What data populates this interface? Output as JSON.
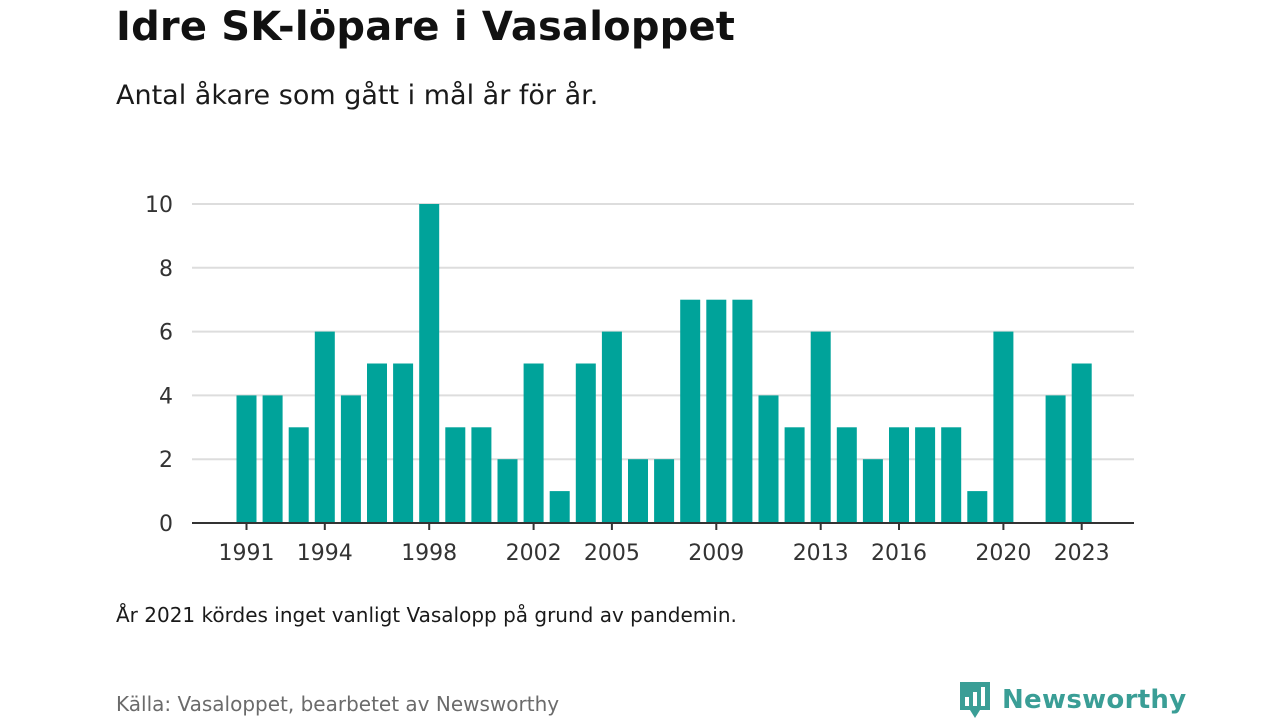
{
  "header": {
    "title": "Idre SK-löpare i Vasaloppet",
    "subtitle": "Antal åkare som gått i mål år för år."
  },
  "footer": {
    "note": "År 2021 kördes inget vanligt Vasalopp på grund av pandemin.",
    "source": "Källa: Vasaloppet, bearbetet av Newsworthy",
    "brand": "Newsworthy"
  },
  "colors": {
    "bar": "#00a39a",
    "grid": "#dddddd",
    "axis": "#333333",
    "brand": "#3a9e96"
  },
  "chart_data": {
    "type": "bar",
    "title": "Idre SK-löpare i Vasaloppet",
    "subtitle": "Antal åkare som gått i mål år för år.",
    "xlabel": "",
    "ylabel": "",
    "categories": [
      1991,
      1992,
      1993,
      1994,
      1995,
      1996,
      1997,
      1998,
      1999,
      2000,
      2001,
      2002,
      2003,
      2004,
      2005,
      2006,
      2007,
      2008,
      2009,
      2010,
      2011,
      2012,
      2013,
      2014,
      2015,
      2016,
      2017,
      2018,
      2019,
      2020,
      2021,
      2022,
      2023
    ],
    "values": [
      4,
      4,
      3,
      6,
      4,
      5,
      5,
      10,
      3,
      3,
      2,
      5,
      1,
      5,
      6,
      2,
      2,
      7,
      7,
      7,
      4,
      3,
      6,
      3,
      2,
      3,
      3,
      3,
      1,
      6,
      null,
      4,
      5
    ],
    "x_tick_labels": [
      1991,
      1994,
      1998,
      2002,
      2005,
      2009,
      2013,
      2016,
      2020,
      2023
    ],
    "y_ticks": [
      0,
      2,
      4,
      6,
      8,
      10
    ],
    "ylim": [
      0,
      10
    ],
    "grid": true,
    "legend": "none"
  }
}
